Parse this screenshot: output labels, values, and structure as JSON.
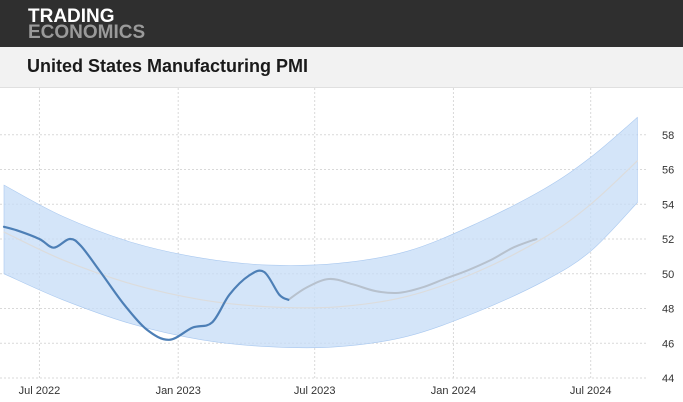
{
  "brand": {
    "line1": "TRADING",
    "line2": "ECONOMICS"
  },
  "chart_data": {
    "type": "line",
    "title": "United States Manufacturing PMI",
    "xlabel": "",
    "ylabel": "",
    "x_ticks": [
      {
        "label": "Jul 2022",
        "date": "2022-07-01"
      },
      {
        "label": "Jan 2023",
        "date": "2023-01-01"
      },
      {
        "label": "Jul 2023",
        "date": "2023-07-01"
      },
      {
        "label": "Jan 2024",
        "date": "2024-01-01"
      },
      {
        "label": "Jul 2024",
        "date": "2024-07-01"
      }
    ],
    "xlim": [
      "2022-05-15",
      "2024-09-15"
    ],
    "y_ticks": [
      44,
      46,
      48,
      50,
      52,
      54,
      56,
      58
    ],
    "ylim": [
      44,
      60
    ],
    "grid": true,
    "y_axis_side": "right",
    "series": [
      {
        "role": "actual",
        "color": "#4d7fb6",
        "points": [
          {
            "x": "2022-05-15",
            "y": 52.7
          },
          {
            "x": "2022-06-01",
            "y": 52.5
          },
          {
            "x": "2022-07-01",
            "y": 52.0
          },
          {
            "x": "2022-07-20",
            "y": 51.5
          },
          {
            "x": "2022-08-10",
            "y": 52.0
          },
          {
            "x": "2022-08-25",
            "y": 51.6
          },
          {
            "x": "2022-09-20",
            "y": 50.1
          },
          {
            "x": "2022-10-20",
            "y": 48.3
          },
          {
            "x": "2022-11-20",
            "y": 46.8
          },
          {
            "x": "2022-12-20",
            "y": 46.2
          },
          {
            "x": "2023-01-20",
            "y": 46.9
          },
          {
            "x": "2023-02-15",
            "y": 47.2
          },
          {
            "x": "2023-03-10",
            "y": 48.8
          },
          {
            "x": "2023-04-05",
            "y": 49.9
          },
          {
            "x": "2023-04-25",
            "y": 50.1
          },
          {
            "x": "2023-05-15",
            "y": 48.8
          },
          {
            "x": "2023-05-27",
            "y": 48.5
          }
        ]
      },
      {
        "role": "forecast",
        "color": "#b7c1cd",
        "points": [
          {
            "x": "2023-05-27",
            "y": 48.5
          },
          {
            "x": "2023-06-20",
            "y": 49.2
          },
          {
            "x": "2023-07-20",
            "y": 49.7
          },
          {
            "x": "2023-08-20",
            "y": 49.4
          },
          {
            "x": "2023-09-20",
            "y": 49.0
          },
          {
            "x": "2023-10-20",
            "y": 48.9
          },
          {
            "x": "2023-11-20",
            "y": 49.2
          },
          {
            "x": "2023-12-20",
            "y": 49.7
          },
          {
            "x": "2024-01-20",
            "y": 50.2
          },
          {
            "x": "2024-02-20",
            "y": 50.8
          },
          {
            "x": "2024-03-20",
            "y": 51.5
          },
          {
            "x": "2024-04-20",
            "y": 52.0
          }
        ]
      },
      {
        "role": "trend",
        "color": "#dcdcdc",
        "points": [
          {
            "x": "2022-05-15",
            "y": 52.4
          },
          {
            "x": "2022-08-01",
            "y": 50.8
          },
          {
            "x": "2022-11-01",
            "y": 49.4
          },
          {
            "x": "2023-02-01",
            "y": 48.5
          },
          {
            "x": "2023-05-01",
            "y": 48.1
          },
          {
            "x": "2023-08-01",
            "y": 48.1
          },
          {
            "x": "2023-11-01",
            "y": 48.7
          },
          {
            "x": "2024-02-01",
            "y": 50.1
          },
          {
            "x": "2024-05-01",
            "y": 52.1
          },
          {
            "x": "2024-07-01",
            "y": 54.0
          },
          {
            "x": "2024-09-01",
            "y": 56.5
          }
        ]
      }
    ],
    "confidence_band": {
      "color": "#c6dcf7",
      "points": [
        {
          "x": "2022-05-15",
          "upper": 55.1,
          "lower": 50.0
        },
        {
          "x": "2022-08-01",
          "upper": 53.3,
          "lower": 48.5
        },
        {
          "x": "2022-11-01",
          "upper": 51.8,
          "lower": 47.1
        },
        {
          "x": "2023-02-01",
          "upper": 50.9,
          "lower": 46.2
        },
        {
          "x": "2023-05-01",
          "upper": 50.5,
          "lower": 45.8
        },
        {
          "x": "2023-08-01",
          "upper": 50.6,
          "lower": 45.8
        },
        {
          "x": "2023-11-01",
          "upper": 51.3,
          "lower": 46.4
        },
        {
          "x": "2024-02-01",
          "upper": 52.9,
          "lower": 47.8
        },
        {
          "x": "2024-05-01",
          "upper": 54.9,
          "lower": 49.6
        },
        {
          "x": "2024-07-01",
          "upper": 56.7,
          "lower": 51.3
        },
        {
          "x": "2024-09-01",
          "upper": 59.0,
          "lower": 54.1
        }
      ]
    }
  }
}
